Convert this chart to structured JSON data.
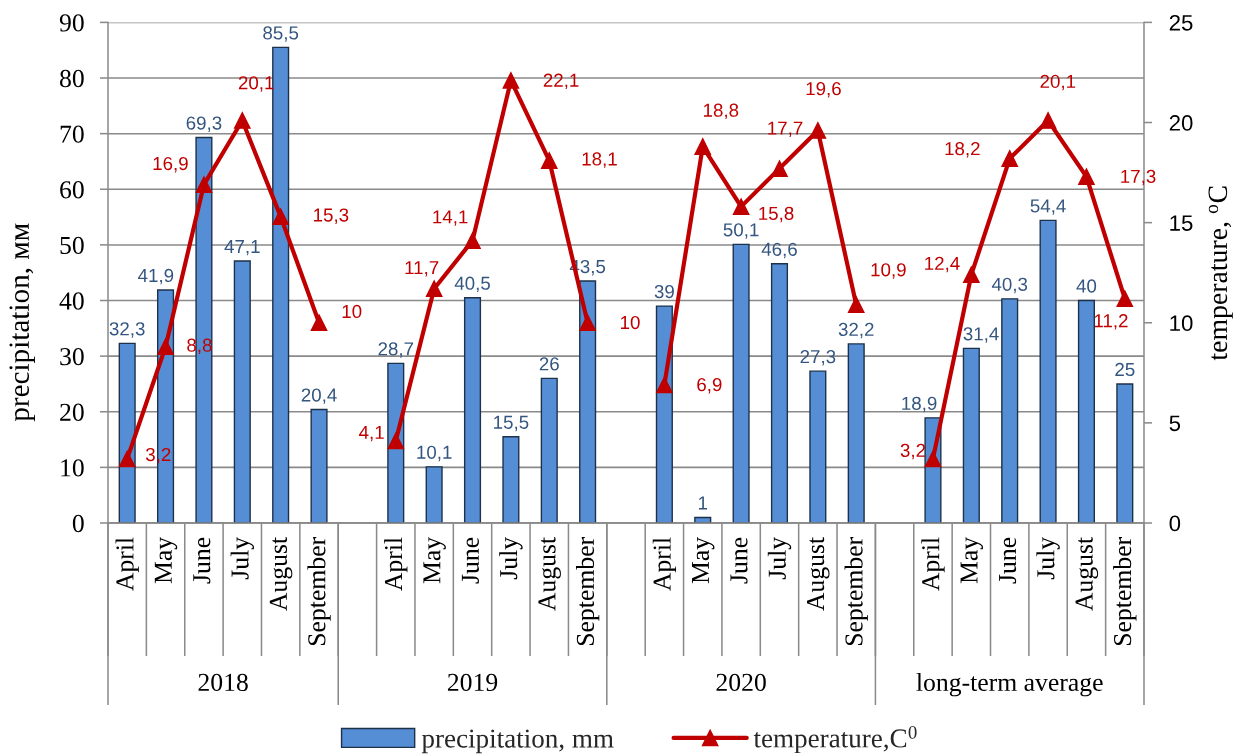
{
  "chart_data": {
    "type": "bar",
    "categories": [
      "April",
      "May",
      "June",
      "July",
      "August",
      "September",
      null,
      "April",
      "May",
      "June",
      "July",
      "August",
      "September",
      null,
      "April",
      "May",
      "June",
      "July",
      "August",
      "September",
      null,
      "April",
      "May",
      "June",
      "July",
      "August",
      "September"
    ],
    "series": [
      {
        "name": "precipitation, mm",
        "color": "#558ed5",
        "values": [
          32.3,
          41.9,
          69.3,
          47.1,
          85.5,
          20.4,
          null,
          28.7,
          10.1,
          40.5,
          15.5,
          26,
          43.5,
          null,
          39,
          1,
          50.1,
          46.6,
          27.3,
          32.2,
          null,
          18.9,
          31.4,
          40.3,
          54.4,
          40,
          25
        ],
        "value_labels": [
          "32,3",
          "41,9",
          "69,3",
          "47,1",
          "85,5",
          "20,4",
          null,
          "28,7",
          "10,1",
          "40,5",
          "15,5",
          "26",
          "43,5",
          null,
          "39",
          "1",
          "50,1",
          "46,6",
          "27,3",
          "32,2",
          null,
          "18,9",
          "31,4",
          "40,3",
          "54,4",
          "40",
          "25"
        ]
      },
      {
        "name": "temperature,C$^{0}$",
        "type": "line",
        "axis": "y2",
        "color": "#c00000",
        "values": [
          3.2,
          8.8,
          16.9,
          20.1,
          15.3,
          10,
          null,
          4.1,
          11.7,
          14.1,
          22.1,
          18.1,
          10,
          null,
          6.9,
          18.8,
          15.8,
          17.7,
          19.6,
          10.9,
          null,
          3.2,
          12.4,
          18.2,
          20.1,
          17.3,
          11.2
        ],
        "value_labels": [
          "3,2",
          "8,8",
          "16,9",
          "20,1",
          "15,3",
          "10",
          null,
          "4,1",
          "11,7",
          "14,1",
          "22,1",
          "18,1",
          "10",
          null,
          "6,9",
          "18,8",
          "15,8",
          "17,7",
          "19,6",
          "10,9",
          null,
          "3,2",
          "12,4",
          "18,2",
          "20,1",
          "17,3",
          "11,2"
        ]
      }
    ],
    "ylabel": "precipitation, мм",
    "y2label": "temperature, $^{o}$C",
    "ylim": [
      0,
      90
    ],
    "yticks": [
      0,
      10,
      20,
      30,
      40,
      50,
      60,
      70,
      80,
      90
    ],
    "y2lim": [
      0,
      25
    ],
    "y2ticks": [
      0,
      5,
      10,
      15,
      20,
      25
    ],
    "grid": "y",
    "legend": "bottom",
    "marker": "triangle",
    "line_style": "solid",
    "annotations": [
      "2018",
      "2019",
      "2020",
      "long-term average"
    ]
  }
}
